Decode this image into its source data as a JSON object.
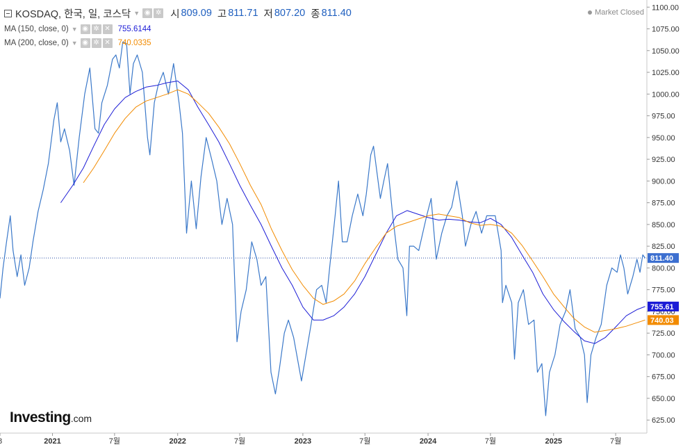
{
  "header": {
    "symbol": "KOSDAQ, 한국, 일, 코스닥",
    "open_label": "시",
    "open": "809.09",
    "high_label": "고",
    "high": "811.71",
    "low_label": "저",
    "low": "807.20",
    "close_label": "종",
    "close": "811.40",
    "market_status": "Market Closed"
  },
  "indicators": [
    {
      "label": "MA (150, close, 0)",
      "value": "755.6144",
      "color": "#1c1cd6"
    },
    {
      "label": "MA (200, close, 0)",
      "value": "740.0335",
      "color": "#f28b00"
    }
  ],
  "brand": {
    "name": "Investing",
    "suffix": ".com"
  },
  "colors": {
    "price": "#3a78c9",
    "ma150": "#1c1cd6",
    "ma200": "#f28b00",
    "current_tag": "#3c6fd0"
  },
  "price_tags": {
    "current": "811.40",
    "ma150": "755.61",
    "ma200": "740.03"
  },
  "chart_data": {
    "type": "line",
    "y_axis_position": "right",
    "ylim": [
      610,
      1105
    ],
    "y_ticks": [
      "1100.00",
      "1075.00",
      "1050.00",
      "1025.00",
      "1000.00",
      "975.00",
      "950.00",
      "925.00",
      "900.00",
      "875.00",
      "850.00",
      "825.00",
      "800.00",
      "775.00",
      "750.00",
      "725.00",
      "700.00",
      "675.00",
      "650.00",
      "625.00"
    ],
    "x_ticks": [
      {
        "label": "8",
        "date": "2020-08"
      },
      {
        "label": "2021",
        "date": "2021-01"
      },
      {
        "label": "7월",
        "date": "2021-07"
      },
      {
        "label": "2022",
        "date": "2022-01"
      },
      {
        "label": "7월",
        "date": "2022-07"
      },
      {
        "label": "2023",
        "date": "2023-01"
      },
      {
        "label": "7월",
        "date": "2023-07"
      },
      {
        "label": "2024",
        "date": "2024-01"
      },
      {
        "label": "7월",
        "date": "2024-07"
      },
      {
        "label": "2025",
        "date": "2025-01"
      },
      {
        "label": "7월",
        "date": "2025-07"
      }
    ],
    "xlim": [
      "2020-08-01",
      "2025-09-30"
    ],
    "current_value_line": 811.4,
    "series": [
      {
        "name": "KOSDAQ",
        "color": "#3a78c9",
        "points": [
          [
            "2020-08-01",
            765
          ],
          [
            "2020-08-10",
            800
          ],
          [
            "2020-08-20",
            830
          ],
          [
            "2020-08-31",
            860
          ],
          [
            "2020-09-08",
            820
          ],
          [
            "2020-09-20",
            790
          ],
          [
            "2020-10-01",
            815
          ],
          [
            "2020-10-12",
            780
          ],
          [
            "2020-10-25",
            800
          ],
          [
            "2020-11-05",
            830
          ],
          [
            "2020-11-20",
            865
          ],
          [
            "2020-12-05",
            890
          ],
          [
            "2020-12-20",
            920
          ],
          [
            "2021-01-05",
            970
          ],
          [
            "2021-01-15",
            990
          ],
          [
            "2021-01-25",
            945
          ],
          [
            "2021-02-05",
            960
          ],
          [
            "2021-02-20",
            935
          ],
          [
            "2021-03-05",
            895
          ],
          [
            "2021-03-20",
            950
          ],
          [
            "2021-04-05",
            1000
          ],
          [
            "2021-04-20",
            1030
          ],
          [
            "2021-05-05",
            960
          ],
          [
            "2021-05-15",
            955
          ],
          [
            "2021-05-25",
            990
          ],
          [
            "2021-06-10",
            1010
          ],
          [
            "2021-06-25",
            1040
          ],
          [
            "2021-07-05",
            1045
          ],
          [
            "2021-07-15",
            1030
          ],
          [
            "2021-07-25",
            1060
          ],
          [
            "2021-08-05",
            1058
          ],
          [
            "2021-08-15",
            1000
          ],
          [
            "2021-08-25",
            1035
          ],
          [
            "2021-09-05",
            1045
          ],
          [
            "2021-09-20",
            1025
          ],
          [
            "2021-10-05",
            950
          ],
          [
            "2021-10-12",
            930
          ],
          [
            "2021-10-25",
            990
          ],
          [
            "2021-11-05",
            1010
          ],
          [
            "2021-11-20",
            1025
          ],
          [
            "2021-12-05",
            1000
          ],
          [
            "2021-12-20",
            1035
          ],
          [
            "2022-01-05",
            990
          ],
          [
            "2022-01-15",
            955
          ],
          [
            "2022-01-27",
            840
          ],
          [
            "2022-02-10",
            900
          ],
          [
            "2022-02-24",
            845
          ],
          [
            "2022-03-10",
            905
          ],
          [
            "2022-03-25",
            950
          ],
          [
            "2022-04-10",
            925
          ],
          [
            "2022-04-25",
            900
          ],
          [
            "2022-05-10",
            850
          ],
          [
            "2022-05-25",
            880
          ],
          [
            "2022-06-10",
            850
          ],
          [
            "2022-06-23",
            715
          ],
          [
            "2022-07-05",
            750
          ],
          [
            "2022-07-20",
            775
          ],
          [
            "2022-08-05",
            830
          ],
          [
            "2022-08-20",
            810
          ],
          [
            "2022-09-01",
            780
          ],
          [
            "2022-09-15",
            790
          ],
          [
            "2022-09-30",
            680
          ],
          [
            "2022-10-13",
            655
          ],
          [
            "2022-10-25",
            685
          ],
          [
            "2022-11-08",
            725
          ],
          [
            "2022-11-20",
            740
          ],
          [
            "2022-12-05",
            720
          ],
          [
            "2022-12-28",
            670
          ],
          [
            "2023-01-10",
            700
          ],
          [
            "2023-01-25",
            735
          ],
          [
            "2023-02-10",
            775
          ],
          [
            "2023-02-25",
            780
          ],
          [
            "2023-03-10",
            760
          ],
          [
            "2023-03-20",
            800
          ],
          [
            "2023-04-05",
            860
          ],
          [
            "2023-04-15",
            900
          ],
          [
            "2023-04-26",
            830
          ],
          [
            "2023-05-10",
            830
          ],
          [
            "2023-05-25",
            860
          ],
          [
            "2023-06-10",
            885
          ],
          [
            "2023-06-25",
            860
          ],
          [
            "2023-07-05",
            885
          ],
          [
            "2023-07-18",
            930
          ],
          [
            "2023-07-26",
            940
          ],
          [
            "2023-08-05",
            910
          ],
          [
            "2023-08-15",
            880
          ],
          [
            "2023-08-25",
            900
          ],
          [
            "2023-09-05",
            920
          ],
          [
            "2023-09-20",
            860
          ],
          [
            "2023-10-05",
            810
          ],
          [
            "2023-10-20",
            800
          ],
          [
            "2023-10-31",
            745
          ],
          [
            "2023-11-08",
            825
          ],
          [
            "2023-11-20",
            825
          ],
          [
            "2023-12-05",
            820
          ],
          [
            "2023-12-28",
            860
          ],
          [
            "2024-01-10",
            880
          ],
          [
            "2024-01-25",
            810
          ],
          [
            "2024-02-10",
            840
          ],
          [
            "2024-02-25",
            860
          ],
          [
            "2024-03-10",
            870
          ],
          [
            "2024-03-25",
            900
          ],
          [
            "2024-04-10",
            860
          ],
          [
            "2024-04-19",
            825
          ],
          [
            "2024-05-05",
            850
          ],
          [
            "2024-05-20",
            865
          ],
          [
            "2024-06-05",
            840
          ],
          [
            "2024-06-20",
            860
          ],
          [
            "2024-07-05",
            860
          ],
          [
            "2024-07-15",
            860
          ],
          [
            "2024-08-01",
            820
          ],
          [
            "2024-08-05",
            760
          ],
          [
            "2024-08-15",
            780
          ],
          [
            "2024-09-01",
            760
          ],
          [
            "2024-09-09",
            695
          ],
          [
            "2024-09-20",
            760
          ],
          [
            "2024-10-05",
            775
          ],
          [
            "2024-10-20",
            735
          ],
          [
            "2024-11-05",
            740
          ],
          [
            "2024-11-15",
            680
          ],
          [
            "2024-11-28",
            690
          ],
          [
            "2024-12-09",
            630
          ],
          [
            "2024-12-20",
            680
          ],
          [
            "2025-01-05",
            700
          ],
          [
            "2025-01-20",
            735
          ],
          [
            "2025-02-05",
            750
          ],
          [
            "2025-02-18",
            775
          ],
          [
            "2025-03-05",
            730
          ],
          [
            "2025-03-20",
            720
          ],
          [
            "2025-04-01",
            700
          ],
          [
            "2025-04-09",
            645
          ],
          [
            "2025-04-20",
            700
          ],
          [
            "2025-05-05",
            720
          ],
          [
            "2025-05-20",
            735
          ],
          [
            "2025-06-05",
            780
          ],
          [
            "2025-06-20",
            800
          ],
          [
            "2025-07-05",
            795
          ],
          [
            "2025-07-15",
            815
          ],
          [
            "2025-07-25",
            800
          ],
          [
            "2025-08-05",
            770
          ],
          [
            "2025-08-20",
            790
          ],
          [
            "2025-09-01",
            810
          ],
          [
            "2025-09-10",
            795
          ],
          [
            "2025-09-18",
            815
          ],
          [
            "2025-09-25",
            811.4
          ]
        ]
      },
      {
        "name": "MA (150, close, 0)",
        "color": "#1c1cd6",
        "points": [
          [
            "2021-01-25",
            875
          ],
          [
            "2021-03-01",
            895
          ],
          [
            "2021-04-01",
            915
          ],
          [
            "2021-05-01",
            940
          ],
          [
            "2021-06-01",
            965
          ],
          [
            "2021-07-01",
            983
          ],
          [
            "2021-08-01",
            996
          ],
          [
            "2021-09-01",
            1003
          ],
          [
            "2021-10-01",
            1008
          ],
          [
            "2021-11-01",
            1010
          ],
          [
            "2021-12-01",
            1013
          ],
          [
            "2022-01-01",
            1015
          ],
          [
            "2022-02-01",
            1005
          ],
          [
            "2022-03-01",
            985
          ],
          [
            "2022-04-01",
            965
          ],
          [
            "2022-05-01",
            945
          ],
          [
            "2022-06-01",
            920
          ],
          [
            "2022-07-01",
            895
          ],
          [
            "2022-08-01",
            872
          ],
          [
            "2022-09-01",
            850
          ],
          [
            "2022-10-01",
            825
          ],
          [
            "2022-11-01",
            800
          ],
          [
            "2022-12-01",
            780
          ],
          [
            "2023-01-01",
            755
          ],
          [
            "2023-02-01",
            740
          ],
          [
            "2023-03-01",
            740
          ],
          [
            "2023-04-01",
            745
          ],
          [
            "2023-05-01",
            755
          ],
          [
            "2023-06-01",
            770
          ],
          [
            "2023-07-01",
            790
          ],
          [
            "2023-08-01",
            815
          ],
          [
            "2023-09-01",
            840
          ],
          [
            "2023-10-01",
            860
          ],
          [
            "2023-11-01",
            866
          ],
          [
            "2023-12-01",
            862
          ],
          [
            "2024-01-01",
            858
          ],
          [
            "2024-02-01",
            855
          ],
          [
            "2024-03-01",
            856
          ],
          [
            "2024-04-01",
            855
          ],
          [
            "2024-05-01",
            853
          ],
          [
            "2024-06-01",
            852
          ],
          [
            "2024-07-01",
            857
          ],
          [
            "2024-08-01",
            850
          ],
          [
            "2024-09-01",
            835
          ],
          [
            "2024-10-01",
            815
          ],
          [
            "2024-11-01",
            795
          ],
          [
            "2024-12-01",
            770
          ],
          [
            "2025-01-01",
            752
          ],
          [
            "2025-02-01",
            738
          ],
          [
            "2025-03-01",
            727
          ],
          [
            "2025-04-01",
            716
          ],
          [
            "2025-05-01",
            713
          ],
          [
            "2025-06-01",
            720
          ],
          [
            "2025-07-01",
            732
          ],
          [
            "2025-08-01",
            745
          ],
          [
            "2025-09-01",
            752
          ],
          [
            "2025-09-25",
            755.6
          ]
        ]
      },
      {
        "name": "MA (200, close, 0)",
        "color": "#f28b00",
        "points": [
          [
            "2021-04-01",
            898
          ],
          [
            "2021-05-01",
            915
          ],
          [
            "2021-06-01",
            935
          ],
          [
            "2021-07-01",
            955
          ],
          [
            "2021-08-01",
            972
          ],
          [
            "2021-09-01",
            985
          ],
          [
            "2021-10-01",
            992
          ],
          [
            "2021-11-01",
            996
          ],
          [
            "2021-12-01",
            1000
          ],
          [
            "2022-01-01",
            1005
          ],
          [
            "2022-02-01",
            1000
          ],
          [
            "2022-03-01",
            990
          ],
          [
            "2022-04-01",
            978
          ],
          [
            "2022-05-01",
            962
          ],
          [
            "2022-06-01",
            943
          ],
          [
            "2022-07-01",
            920
          ],
          [
            "2022-08-01",
            895
          ],
          [
            "2022-09-01",
            873
          ],
          [
            "2022-10-01",
            845
          ],
          [
            "2022-11-01",
            820
          ],
          [
            "2022-12-01",
            798
          ],
          [
            "2023-01-01",
            780
          ],
          [
            "2023-02-01",
            765
          ],
          [
            "2023-03-01",
            758
          ],
          [
            "2023-04-01",
            762
          ],
          [
            "2023-05-01",
            770
          ],
          [
            "2023-06-01",
            785
          ],
          [
            "2023-07-01",
            805
          ],
          [
            "2023-08-01",
            823
          ],
          [
            "2023-09-01",
            840
          ],
          [
            "2023-10-01",
            848
          ],
          [
            "2023-11-01",
            852
          ],
          [
            "2023-12-01",
            856
          ],
          [
            "2024-01-01",
            860
          ],
          [
            "2024-02-01",
            862
          ],
          [
            "2024-03-01",
            860
          ],
          [
            "2024-04-01",
            858
          ],
          [
            "2024-05-01",
            852
          ],
          [
            "2024-06-01",
            849
          ],
          [
            "2024-07-01",
            850
          ],
          [
            "2024-08-01",
            848
          ],
          [
            "2024-09-01",
            840
          ],
          [
            "2024-10-01",
            826
          ],
          [
            "2024-11-01",
            808
          ],
          [
            "2024-12-01",
            790
          ],
          [
            "2025-01-01",
            770
          ],
          [
            "2025-02-01",
            755
          ],
          [
            "2025-03-01",
            742
          ],
          [
            "2025-04-01",
            732
          ],
          [
            "2025-05-01",
            726
          ],
          [
            "2025-06-01",
            728
          ],
          [
            "2025-07-01",
            730
          ],
          [
            "2025-08-01",
            733
          ],
          [
            "2025-09-01",
            737
          ],
          [
            "2025-09-25",
            740.0
          ]
        ]
      }
    ]
  }
}
